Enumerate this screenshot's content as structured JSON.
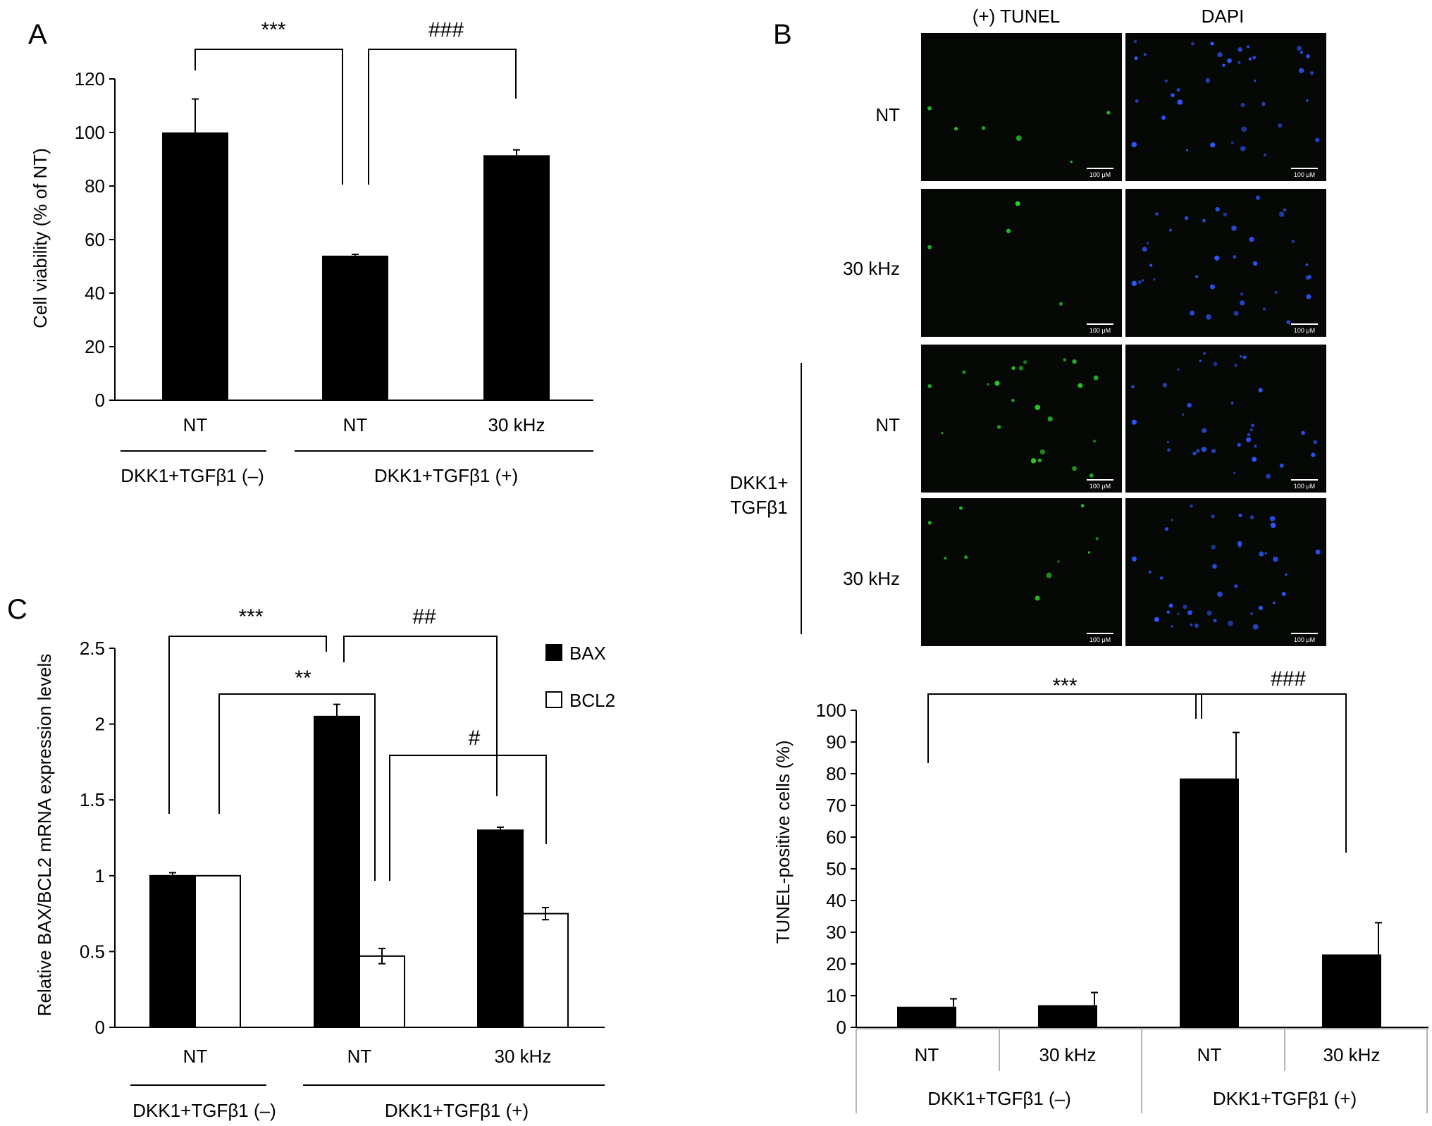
{
  "colors": {
    "bar": "#000000",
    "axis": "#000000",
    "micro_bg": "#050805",
    "tunel": "#2bd12b",
    "dapi": "#2e58ff",
    "sep": "#b5b5b5"
  },
  "panels": {
    "a": {
      "letter": "A",
      "sig_left": "***",
      "sig_right": "###"
    },
    "b": {
      "letter": "B",
      "col_headers": [
        "(+) TUNEL",
        "DAPI"
      ],
      "row_labels": [
        "NT",
        "30 kHz",
        "NT",
        "30 kHz"
      ],
      "group_label": [
        "DKK1+",
        "TGFβ1"
      ],
      "scale_bar": "100 μM",
      "sig_left": "***",
      "sig_right": "###"
    },
    "c": {
      "letter": "C",
      "sig_1": "***",
      "sig_2": "##",
      "sig_3": "**",
      "sig_4": "#"
    }
  },
  "chart_data": [
    {
      "type": "bar",
      "panel": "A",
      "categories": [
        "NT",
        "NT",
        "30 kHz"
      ],
      "values": [
        100,
        54,
        91.5
      ],
      "errors": [
        12.5,
        0.5,
        2
      ],
      "ylabel": "Cell viability (% of NT)",
      "ylim": [
        0,
        120
      ],
      "yticks": [
        0,
        20,
        40,
        60,
        80,
        100,
        120
      ],
      "groups": [
        {
          "label": "DKK1+TGFβ1 (–)"
        },
        {
          "label": "DKK1+TGFβ1 (+)"
        }
      ],
      "grid": false
    },
    {
      "type": "bar",
      "panel": "B",
      "categories": [
        "NT",
        "30 kHz",
        "NT",
        "30 kHz"
      ],
      "values": [
        6.5,
        7,
        78.5,
        23
      ],
      "errors": [
        2.5,
        4,
        14.5,
        10
      ],
      "ylabel": "TUNEL-positive cells (%)",
      "ylim": [
        0,
        100
      ],
      "yticks": [
        0,
        10,
        20,
        30,
        40,
        50,
        60,
        70,
        80,
        90,
        100
      ],
      "groups": [
        {
          "label": "DKK1+TGFβ1 (–)"
        },
        {
          "label": "DKK1+TGFβ1 (+)"
        }
      ],
      "grid": false
    },
    {
      "type": "bar",
      "panel": "C",
      "categories": [
        "NT",
        "NT",
        "30 kHz"
      ],
      "series": [
        {
          "name": "BAX",
          "values": [
            1.0,
            2.05,
            1.3
          ],
          "errors": [
            0.02,
            0.08,
            0.02
          ],
          "color": "#000000"
        },
        {
          "name": "BCL2",
          "values": [
            1.0,
            0.47,
            0.75
          ],
          "errors": [
            0.0,
            0.05,
            0.04
          ],
          "color": "#ffffff"
        }
      ],
      "ylabel": "Relative BAX/BCL2 mRNA expression levels",
      "ylim": [
        0,
        2.5
      ],
      "yticks": [
        "0",
        "0.5",
        "1",
        "1.5",
        "2",
        "2.5"
      ],
      "groups": [
        {
          "label": "DKK1+TGFβ1 (–)"
        },
        {
          "label": "DKK1+TGFβ1 (+)"
        }
      ],
      "legend": "top-right",
      "grid": false
    }
  ]
}
